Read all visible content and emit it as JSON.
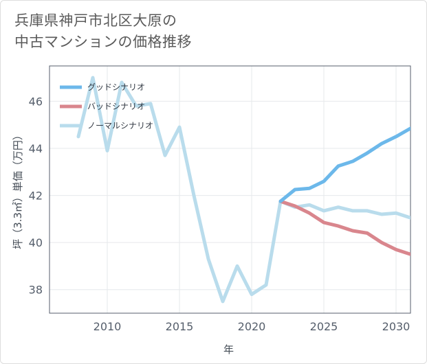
{
  "title_lines": [
    "兵庫県神戸市北区大原の",
    "中古マンションの価格推移"
  ],
  "colors": {
    "good": "#6cb8ea",
    "bad": "#d9868d",
    "normal": "#b9dcec",
    "grid": "#e6e8eb",
    "axis": "#555e6b"
  },
  "chart_data": {
    "type": "line",
    "title": "兵庫県神戸市北区大原の中古マンションの価格推移",
    "xlabel": "年",
    "ylabel": "坪（3.3㎡）単価（万円）",
    "xlim": [
      2006,
      2031
    ],
    "ylim": [
      37,
      47.5
    ],
    "x_ticks": [
      2010,
      2015,
      2020,
      2025,
      2030
    ],
    "y_ticks": [
      38,
      40,
      42,
      44,
      46
    ],
    "legend_position": "top-left",
    "series": [
      {
        "name": "グッドシナリオ",
        "color_key": "good",
        "x": [
          2022,
          2023,
          2024,
          2025,
          2026,
          2027,
          2028,
          2029,
          2030,
          2031
        ],
        "y": [
          41.75,
          42.25,
          42.3,
          42.6,
          43.25,
          43.45,
          43.8,
          44.2,
          44.5,
          44.85
        ]
      },
      {
        "name": "バッドシナリオ",
        "color_key": "bad",
        "x": [
          2022,
          2023,
          2024,
          2025,
          2026,
          2027,
          2028,
          2029,
          2030,
          2031
        ],
        "y": [
          41.75,
          41.55,
          41.25,
          40.85,
          40.7,
          40.5,
          40.4,
          40.0,
          39.7,
          39.5
        ]
      },
      {
        "name": "ノーマルシナリオ",
        "color_key": "normal",
        "x": [
          2008,
          2009,
          2010,
          2011,
          2012,
          2013,
          2014,
          2015,
          2016,
          2017,
          2018,
          2019,
          2020,
          2021,
          2022,
          2023,
          2024,
          2025,
          2026,
          2027,
          2028,
          2029,
          2030,
          2031
        ],
        "y": [
          44.5,
          47.0,
          43.9,
          46.8,
          45.8,
          45.9,
          43.7,
          44.9,
          42.0,
          39.3,
          37.5,
          39.0,
          37.8,
          38.2,
          41.75,
          41.5,
          41.6,
          41.35,
          41.5,
          41.35,
          41.35,
          41.2,
          41.25,
          41.05
        ]
      }
    ]
  }
}
